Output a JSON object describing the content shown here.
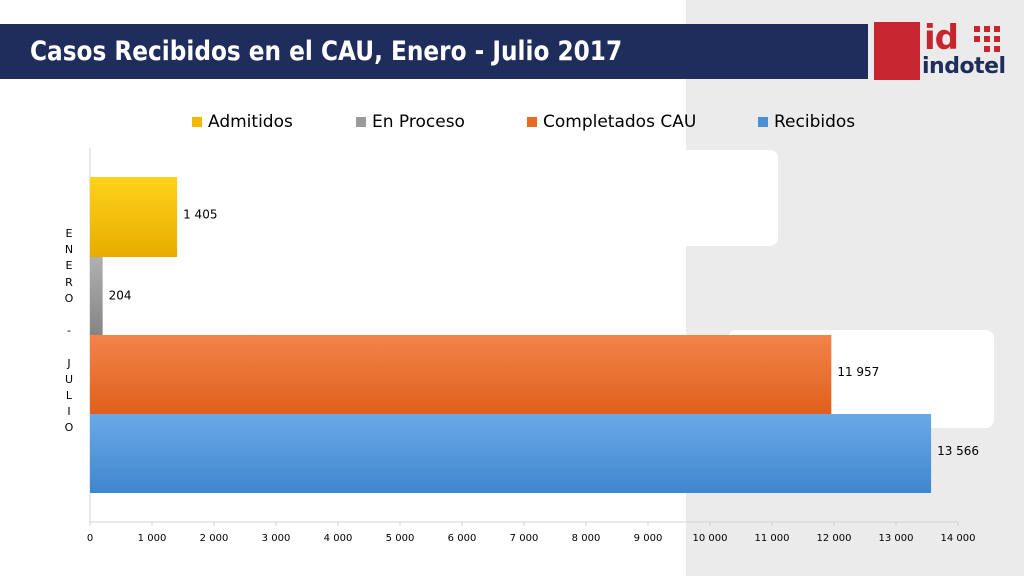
{
  "title": "Casos Recibidos en el CAU, Enero - Julio 2017",
  "logo": {
    "id_text": "id",
    "word": "indotel"
  },
  "colors": {
    "title_bar": "#1e2d5c",
    "admitidos": "#f5b800",
    "en_proceso": "#9a9a9a",
    "completados": "#ea6a24",
    "recibidos": "#4a90d6",
    "logo_red": "#c8262e"
  },
  "chart_data": {
    "type": "bar",
    "orientation": "horizontal",
    "category_label": "E N E R O - J U L I O",
    "category_letters": [
      "E",
      "N",
      "E",
      "R",
      "O",
      "",
      "-",
      "",
      "J",
      "U",
      "L",
      "I",
      "O"
    ],
    "series": [
      {
        "name": "Admitidos",
        "value": 1405,
        "label": "1 405",
        "color": "#f5b800"
      },
      {
        "name": "En Proceso",
        "value": 204,
        "label": "204",
        "color": "#9a9a9a"
      },
      {
        "name": "Completados CAU",
        "value": 11957,
        "label": "11 957",
        "color": "#ea6a24"
      },
      {
        "name": "Recibidos",
        "value": 13566,
        "label": "13 566",
        "color": "#4a90d6"
      }
    ],
    "xlim": [
      0,
      14000
    ],
    "xticks": [
      0,
      1000,
      2000,
      3000,
      4000,
      5000,
      6000,
      7000,
      8000,
      9000,
      10000,
      11000,
      12000,
      13000,
      14000
    ],
    "xtick_labels": [
      "0",
      "1 000",
      "2 000",
      "3 000",
      "4 000",
      "5 000",
      "6 000",
      "7 000",
      "8 000",
      "9 000",
      "10 000",
      "11 000",
      "12 000",
      "13 000",
      "14 000"
    ],
    "legend": [
      "Admitidos",
      "En Proceso",
      "Completados CAU",
      "Recibidos"
    ],
    "legend_position": "top",
    "grid": false
  }
}
